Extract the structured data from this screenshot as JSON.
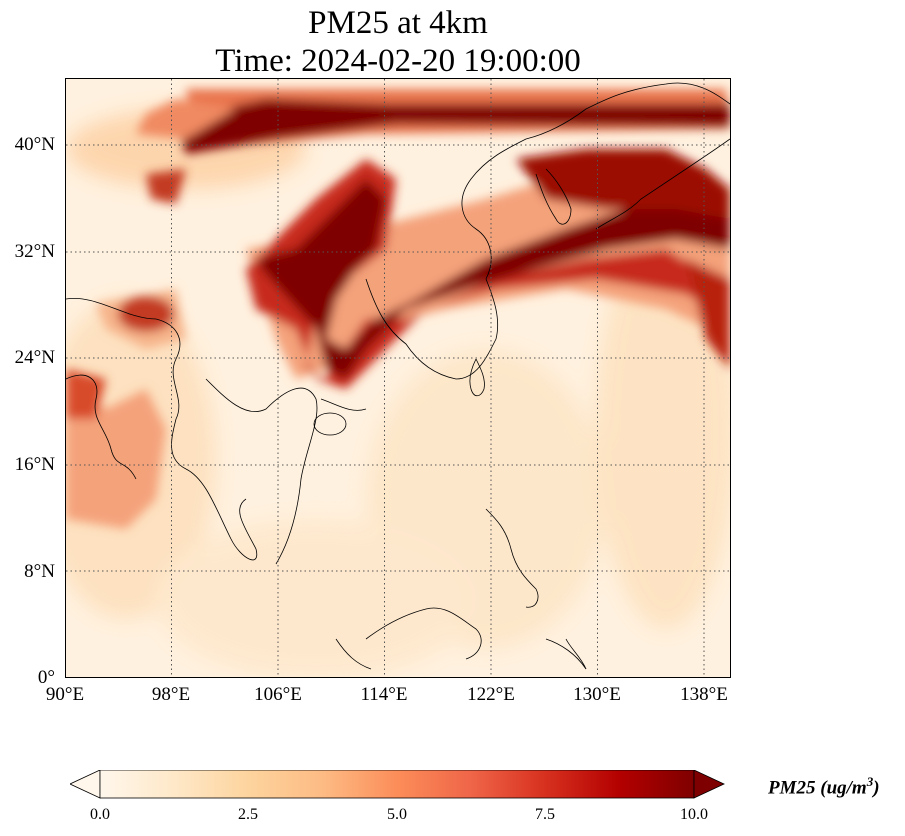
{
  "title_line1": "PM25 at 4km",
  "title_line2": "Time: 2024-02-20 19:00:00",
  "lat_ticks": [
    "40°N",
    "32°N",
    "24°N",
    "16°N",
    "8°N",
    "0°"
  ],
  "lon_ticks": [
    "90°E",
    "98°E",
    "106°E",
    "114°E",
    "122°E",
    "130°E",
    "138°E"
  ],
  "map_extent": {
    "lon_min": 90,
    "lon_max": 140,
    "lat_min": 0,
    "lat_max": 45
  },
  "colorbar": {
    "label": "PM25 (ug/m",
    "label_sup": "3",
    "label_close": ")",
    "ticks": [
      "0.0",
      "2.5",
      "5.0",
      "7.5",
      "10.0"
    ],
    "vmin": 0,
    "vmax": 10,
    "colormap": "OrRd",
    "colors": [
      "#fff7ec",
      "#fee8c8",
      "#fdd49e",
      "#fdbb84",
      "#fc8d59",
      "#ef6548",
      "#d7301f",
      "#b30000",
      "#7f0000"
    ],
    "extend": "both"
  },
  "gridlines": {
    "style": "dotted",
    "color": "#555555"
  }
}
